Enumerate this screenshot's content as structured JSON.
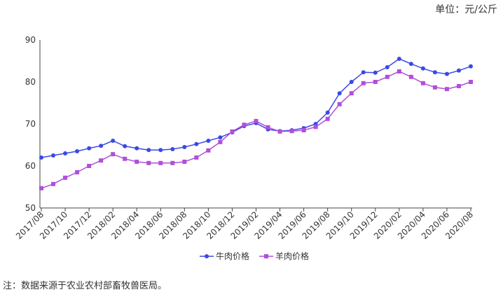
{
  "chart_data": {
    "type": "line",
    "unit": "单位：元/公斤",
    "note": "注：数据来源于农业农村部畜牧兽医局。",
    "categories": [
      "2017/08",
      null,
      "2017/10",
      null,
      "2017/12",
      null,
      "2018/02",
      null,
      "2018/04",
      null,
      "2018/06",
      null,
      "2018/08",
      null,
      "2018/10",
      null,
      "2018/12",
      null,
      "2019/02",
      null,
      "2019/04",
      null,
      "2019/06",
      null,
      "2019/08",
      null,
      "2019/10",
      null,
      "2019/12",
      null,
      "2020/02",
      null,
      "2020/04",
      null,
      "2020/06",
      null,
      "2020/08"
    ],
    "series": [
      {
        "name": "牛肉价格",
        "color": "#3a49e6",
        "marker": "circle",
        "values": [
          62.0,
          62.5,
          63.0,
          63.5,
          64.2,
          64.8,
          66.0,
          64.7,
          64.2,
          63.8,
          63.8,
          64.0,
          64.5,
          65.2,
          66.0,
          66.8,
          68.0,
          69.5,
          70.2,
          68.7,
          68.3,
          68.5,
          69.0,
          70.0,
          72.7,
          77.3,
          80.0,
          82.3,
          82.2,
          83.5,
          85.5,
          84.3,
          83.2,
          82.3,
          81.9,
          82.7,
          83.7
        ]
      },
      {
        "name": "羊肉价格",
        "color": "#b14fd9",
        "marker": "square",
        "values": [
          54.7,
          55.7,
          57.2,
          58.5,
          60.0,
          61.3,
          62.8,
          61.7,
          61.0,
          60.7,
          60.7,
          60.7,
          61.0,
          62.0,
          63.7,
          65.7,
          68.2,
          69.8,
          70.7,
          69.2,
          68.2,
          68.3,
          68.5,
          69.3,
          71.2,
          74.7,
          77.3,
          79.7,
          80.0,
          81.2,
          82.5,
          81.2,
          79.7,
          78.7,
          78.3,
          79.0,
          80.0
        ]
      }
    ],
    "ylim": [
      50,
      90
    ],
    "yticks": [
      50,
      60,
      70,
      80,
      90
    ],
    "grid": false,
    "legend": "bottom"
  }
}
